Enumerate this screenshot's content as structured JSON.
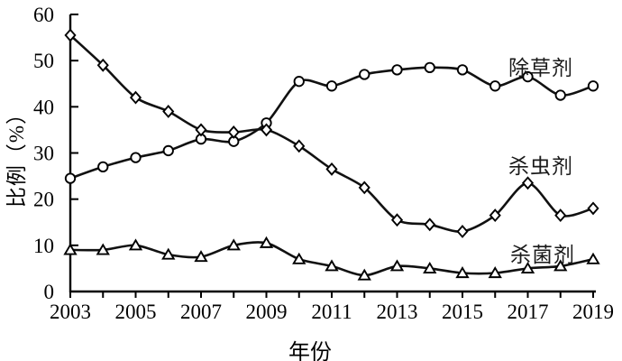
{
  "chart_data": {
    "type": "line",
    "title": "",
    "xlabel": "年份",
    "ylabel": "比例（%）",
    "x": [
      2003,
      2004,
      2005,
      2006,
      2007,
      2008,
      2009,
      2010,
      2011,
      2012,
      2013,
      2014,
      2015,
      2016,
      2017,
      2018,
      2019
    ],
    "x_tick_labels": [
      "2003",
      "2005",
      "2007",
      "2009",
      "2011",
      "2013",
      "2015",
      "2017",
      "2019"
    ],
    "y_ticks": [
      0,
      10,
      20,
      30,
      40,
      50,
      60
    ],
    "y_tick_labels": [
      "0",
      "10",
      "20",
      "30",
      "40",
      "50",
      "60"
    ],
    "ylim": [
      0,
      60
    ],
    "grid": false,
    "smooth_lines": true,
    "line_color": "#111111",
    "marker_fill": "#ffffff",
    "legend_position": "inline-labels-right",
    "series": [
      {
        "id": "herbicide",
        "name": "除草剂",
        "marker": "circle",
        "values": [
          24.5,
          27,
          29,
          30.5,
          33,
          32.5,
          36.5,
          45.5,
          44.5,
          47,
          48,
          48.5,
          48,
          44.5,
          46.5,
          42.5,
          44.5
        ]
      },
      {
        "id": "insecticide",
        "name": "杀虫剂",
        "marker": "diamond",
        "values": [
          55.5,
          49,
          42,
          39,
          35,
          34.5,
          35,
          31.5,
          26.5,
          22.5,
          15.5,
          14.5,
          13,
          16.5,
          23.5,
          16.5,
          18
        ]
      },
      {
        "id": "fungicide",
        "name": "杀菌剂",
        "marker": "triangle",
        "values": [
          9,
          9,
          10,
          8,
          7.5,
          10,
          10.5,
          7,
          5.5,
          3.5,
          5.5,
          5,
          4,
          4,
          5,
          5.5,
          7
        ]
      }
    ]
  }
}
